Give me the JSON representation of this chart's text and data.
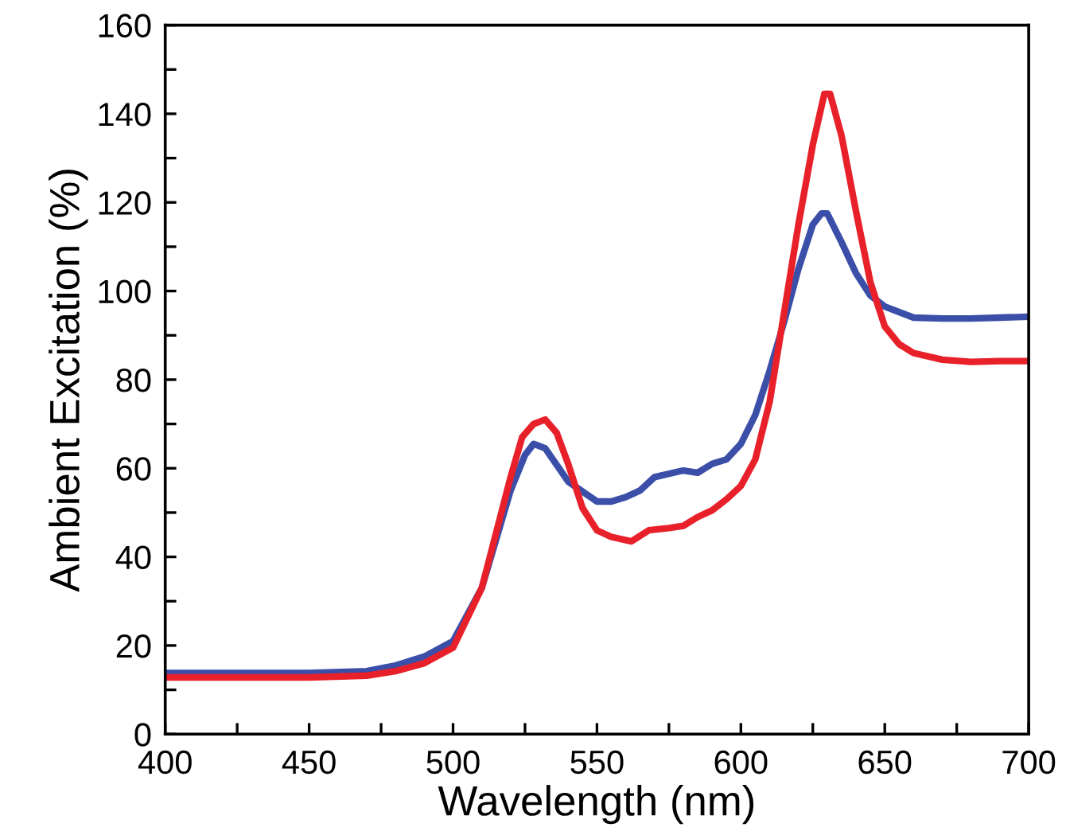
{
  "chart_data": {
    "type": "line",
    "xlabel": "Wavelength (nm)",
    "ylabel": "Ambient Excitation (%)",
    "xlim": [
      400,
      700
    ],
    "ylim": [
      0,
      160
    ],
    "xticks": [
      400,
      {
        "value": 425,
        "label": null
      },
      450,
      {
        "value": 475,
        "label": null
      },
      500,
      {
        "value": 525,
        "label": null
      },
      550,
      {
        "value": 575,
        "label": null
      },
      600,
      {
        "value": 625,
        "label": null
      },
      650,
      {
        "value": 675,
        "label": null
      },
      700
    ],
    "yticks": [
      0,
      {
        "value": 10,
        "label": null
      },
      20,
      {
        "value": 30,
        "label": null
      },
      40,
      {
        "value": 50,
        "label": null
      },
      60,
      {
        "value": 70,
        "label": null
      },
      80,
      {
        "value": 90,
        "label": null
      },
      100,
      {
        "value": 110,
        "label": null
      },
      120,
      {
        "value": 130,
        "label": null
      },
      140,
      {
        "value": 150,
        "label": null
      },
      160
    ],
    "grid": false,
    "marker": "none",
    "line_style": "solid",
    "series": [
      {
        "color": "#3b4fa8",
        "x": [
          400,
          450,
          470,
          480,
          490,
          500,
          510,
          520,
          525,
          528,
          532,
          540,
          550,
          555,
          560,
          565,
          570,
          580,
          585,
          590,
          595,
          600,
          605,
          610,
          615,
          620,
          625,
          628,
          630,
          635,
          640,
          645,
          650,
          660,
          670,
          680,
          690,
          700
        ],
        "values": [
          13.8,
          13.8,
          14.2,
          15.5,
          17.5,
          21,
          33,
          55,
          63,
          65.5,
          64.5,
          57,
          52.5,
          52.5,
          53.5,
          55,
          58,
          59.5,
          59,
          61,
          62,
          65.5,
          72,
          82,
          93,
          105,
          115,
          117.5,
          117.5,
          111,
          104,
          99,
          96.5,
          94,
          93.8,
          93.8,
          94,
          94.2
        ]
      },
      {
        "color": "#e8202a",
        "x": [
          400,
          450,
          470,
          480,
          490,
          500,
          510,
          520,
          524,
          528,
          532,
          536,
          540,
          545,
          550,
          555,
          562,
          568,
          575,
          580,
          585,
          590,
          595,
          600,
          605,
          610,
          615,
          620,
          625,
          629,
          631,
          635,
          640,
          645,
          650,
          655,
          660,
          670,
          680,
          690,
          700
        ],
        "values": [
          12.8,
          12.8,
          13.2,
          14.2,
          16,
          19.5,
          33,
          58,
          67,
          70,
          71,
          68,
          61,
          51,
          46,
          44.5,
          43.5,
          46,
          46.5,
          47,
          49,
          50.5,
          53,
          56,
          62,
          75,
          95,
          115,
          133,
          144.5,
          144.5,
          135,
          118,
          102,
          92,
          88,
          86,
          84.5,
          84,
          84.2,
          84.2
        ]
      }
    ]
  }
}
